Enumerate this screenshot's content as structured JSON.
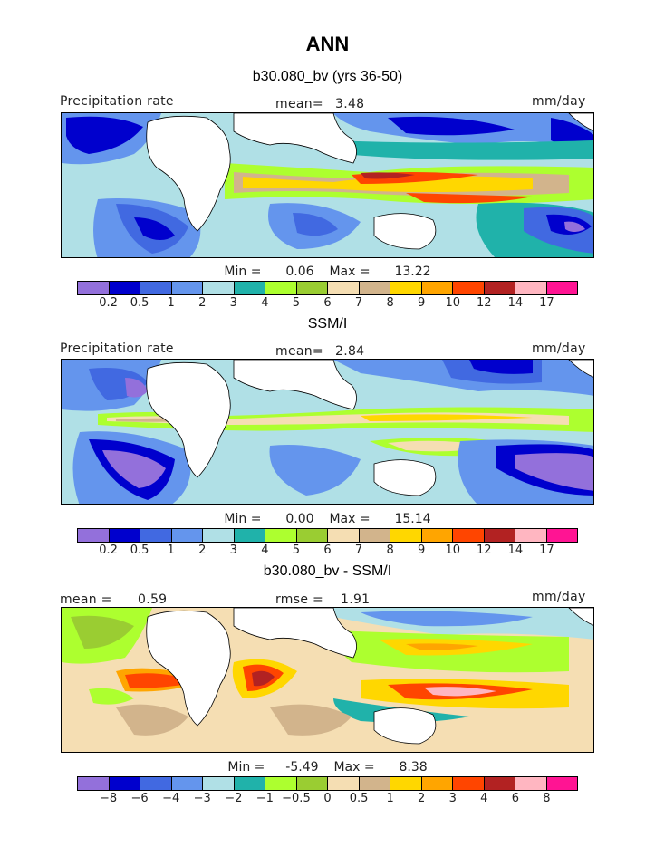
{
  "figure": {
    "title": "ANN"
  },
  "panels": [
    {
      "title": "b30.080_bv (yrs 36-50)",
      "left_label": "Precipitation rate",
      "center_label": "mean=",
      "center_value": "3.48",
      "right_label": "mm/day",
      "min_label": "Min =",
      "min_value": "0.06",
      "max_label": "Max =",
      "max_value": "13.22"
    },
    {
      "title": "SSM/I",
      "left_label": "Precipitation rate",
      "center_label": "mean=",
      "center_value": "2.84",
      "right_label": "mm/day",
      "min_label": "Min =",
      "min_value": "0.00",
      "max_label": "Max =",
      "max_value": "15.14"
    },
    {
      "title": "b30.080_bv - SSM/I",
      "left_label": "mean =",
      "left_value": "0.59",
      "center_label": "rmse =",
      "center_value": "1.91",
      "right_label": "mm/day",
      "min_label": "Min =",
      "min_value": "-5.49",
      "max_label": "Max =",
      "max_value": "8.38"
    }
  ],
  "colorbar": {
    "colors": [
      "#9370DB",
      "#0000CD",
      "#4169E1",
      "#6495ED",
      "#B0E0E6",
      "#20B2AA",
      "#ADFF2F",
      "#9ACD32",
      "#F5DEB3",
      "#D2B48C",
      "#FFD700",
      "#FFA500",
      "#FF4500",
      "#B22222",
      "#FFB6C1",
      "#FF1493"
    ],
    "levels_precip": [
      "0.2",
      "0.5",
      "1",
      "2",
      "3",
      "4",
      "5",
      "6",
      "7",
      "8",
      "9",
      "10",
      "12",
      "14",
      "17"
    ],
    "levels_diff": [
      "-8",
      "-6",
      "-4",
      "-3",
      "-2",
      "-1",
      "-0.5",
      "0",
      "0.5",
      "1",
      "2",
      "3",
      "4",
      "6",
      "8"
    ]
  },
  "chart_data": [
    {
      "type": "heatmap",
      "title": "b30.080_bv (yrs 36-50)",
      "quantity": "Precipitation rate",
      "units": "mm/day",
      "mean": 3.48,
      "min": 0.06,
      "max": 13.22,
      "contour_levels": [
        0.2,
        0.5,
        1,
        2,
        3,
        4,
        5,
        6,
        7,
        8,
        9,
        10,
        12,
        14,
        17
      ]
    },
    {
      "type": "heatmap",
      "title": "SSM/I",
      "quantity": "Precipitation rate",
      "units": "mm/day",
      "mean": 2.84,
      "min": 0.0,
      "max": 15.14,
      "contour_levels": [
        0.2,
        0.5,
        1,
        2,
        3,
        4,
        5,
        6,
        7,
        8,
        9,
        10,
        12,
        14,
        17
      ]
    },
    {
      "type": "heatmap",
      "title": "b30.080_bv - SSM/I",
      "units": "mm/day",
      "mean": 0.59,
      "rmse": 1.91,
      "min": -5.49,
      "max": 8.38,
      "contour_levels": [
        -8,
        -6,
        -4,
        -3,
        -2,
        -1,
        -0.5,
        0,
        0.5,
        1,
        2,
        3,
        4,
        6,
        8
      ]
    }
  ]
}
